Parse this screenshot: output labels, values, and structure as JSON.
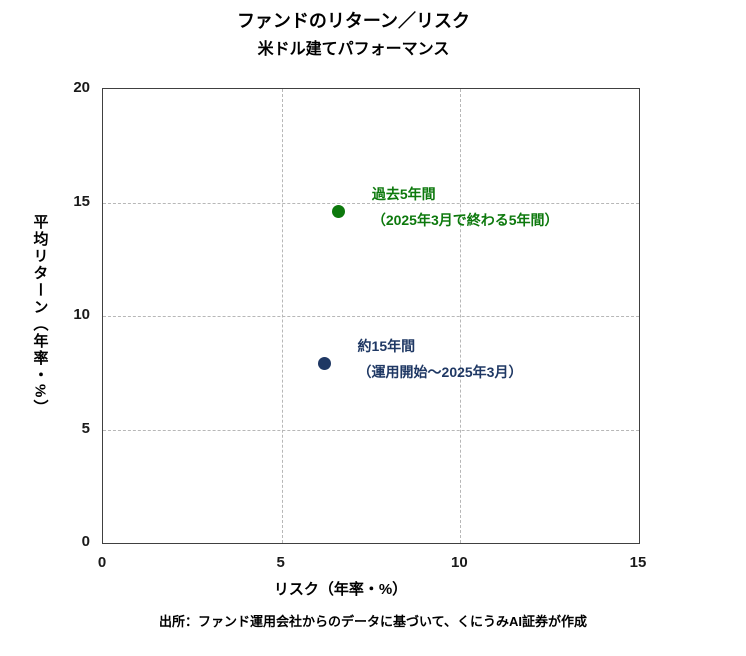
{
  "title": "ファンドのリターン／リスク",
  "subtitle": "米ドル建てパフォーマンス",
  "source_note": "出所：ファンド運用会社からのデータに基づいて、くにうみAI証券が作成",
  "chart_data": {
    "type": "scatter",
    "title": "ファンドのリターン／リスク",
    "subtitle": "米ドル建てパフォーマンス",
    "xlabel": "リスク（年率・%）",
    "ylabel": "平均リターン（年率・%）",
    "xlim": [
      0,
      15
    ],
    "ylim": [
      0,
      20
    ],
    "x_ticks": [
      0,
      5,
      10,
      15
    ],
    "y_ticks": [
      0,
      5,
      10,
      15,
      20
    ],
    "grid": "dashed",
    "legend": "none",
    "series": [
      {
        "name": "過去5年間",
        "annotation_line1": "過去5年間",
        "annotation_line2": "（2025年3月で終わる5年間）",
        "color": "#0d790d",
        "points": [
          {
            "x": 6.6,
            "y": 14.6
          }
        ]
      },
      {
        "name": "約15年間",
        "annotation_line1": "約15年間",
        "annotation_line2": "（運用開始～2025年3月）",
        "color": "#1f3864",
        "points": [
          {
            "x": 6.2,
            "y": 7.9
          }
        ]
      }
    ]
  },
  "colors": {
    "past_5y_green": "#0d790d",
    "since_inception_blue": "#1f3864",
    "gridline": "#b7b7b7",
    "axis_border": "#404040"
  }
}
